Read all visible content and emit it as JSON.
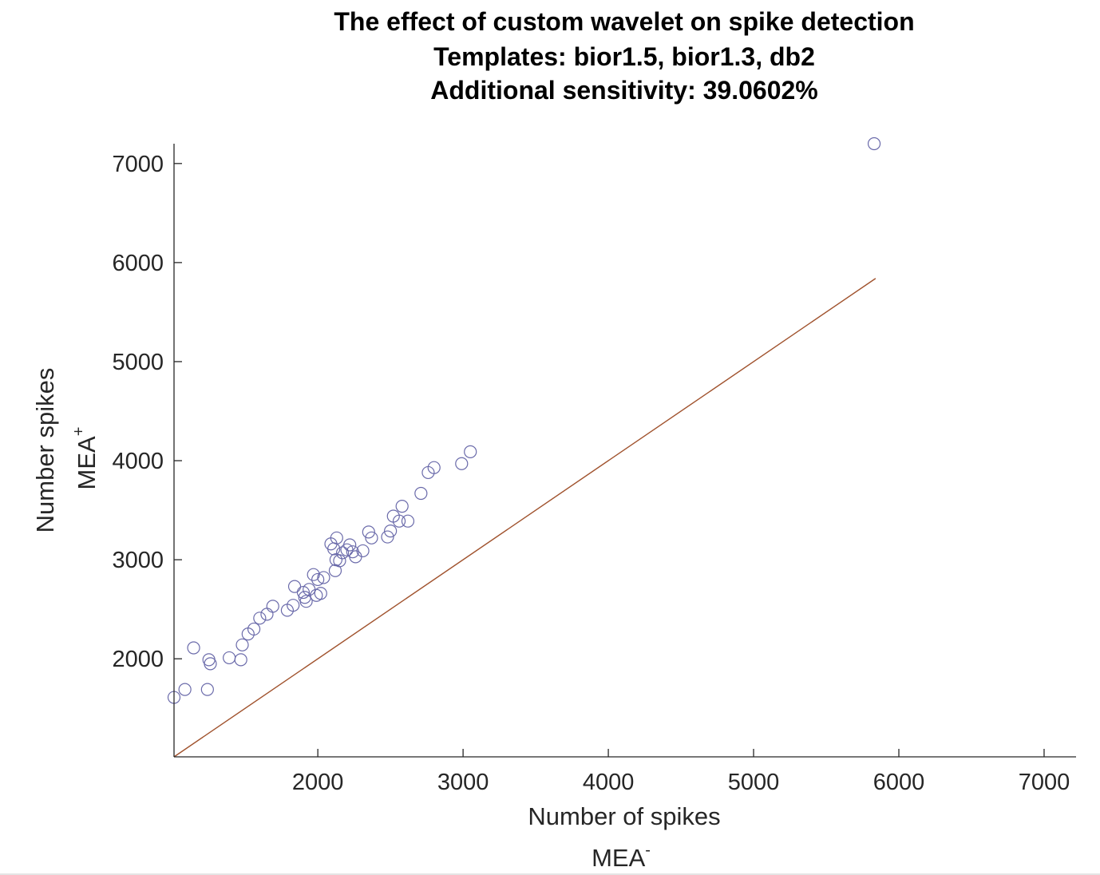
{
  "chart_data": {
    "type": "scatter",
    "title": [
      "The effect of custom wavelet on spike detection",
      "Templates: bior1.5, bior1.3, db2",
      "Additional sensitivity: 39.0602%"
    ],
    "xlabel": "Number of spikes",
    "xlabel_sub": "MEA",
    "xlabel_sup": "-",
    "ylabel": "Number spikes",
    "ylabel_sub": "MEA",
    "ylabel_sup": "+",
    "xlim": [
      1010,
      7220
    ],
    "ylim": [
      1010,
      7200
    ],
    "x_ticks": [
      2000,
      3000,
      4000,
      5000,
      6000,
      7000
    ],
    "y_ticks": [
      2000,
      3000,
      4000,
      5000,
      6000,
      7000
    ],
    "grid": false,
    "marker_color": "#6a6aaa",
    "line_color": "#a0522d",
    "reference_line": {
      "x": [
        1010,
        5840
      ],
      "y": [
        1010,
        5840
      ]
    },
    "series": [
      {
        "points": [
          [
            1010,
            1610
          ],
          [
            1085,
            1690
          ],
          [
            1145,
            2110
          ],
          [
            1240,
            1690
          ],
          [
            1250,
            1990
          ],
          [
            1260,
            1950
          ],
          [
            1390,
            2010
          ],
          [
            1470,
            1990
          ],
          [
            1480,
            2140
          ],
          [
            1520,
            2250
          ],
          [
            1560,
            2300
          ],
          [
            1600,
            2410
          ],
          [
            1650,
            2450
          ],
          [
            1690,
            2530
          ],
          [
            1790,
            2490
          ],
          [
            1830,
            2540
          ],
          [
            1840,
            2730
          ],
          [
            1900,
            2670
          ],
          [
            1910,
            2620
          ],
          [
            1920,
            2580
          ],
          [
            1940,
            2700
          ],
          [
            1970,
            2850
          ],
          [
            1990,
            2640
          ],
          [
            2000,
            2800
          ],
          [
            2020,
            2660
          ],
          [
            2040,
            2820
          ],
          [
            2090,
            3160
          ],
          [
            2110,
            3110
          ],
          [
            2120,
            2890
          ],
          [
            2125,
            3000
          ],
          [
            2130,
            3220
          ],
          [
            2150,
            2990
          ],
          [
            2170,
            3070
          ],
          [
            2200,
            3100
          ],
          [
            2220,
            3150
          ],
          [
            2240,
            3080
          ],
          [
            2260,
            3030
          ],
          [
            2310,
            3090
          ],
          [
            2350,
            3280
          ],
          [
            2370,
            3220
          ],
          [
            2480,
            3230
          ],
          [
            2500,
            3290
          ],
          [
            2520,
            3440
          ],
          [
            2560,
            3390
          ],
          [
            2580,
            3540
          ],
          [
            2620,
            3390
          ],
          [
            2710,
            3670
          ],
          [
            2760,
            3880
          ],
          [
            2800,
            3930
          ],
          [
            2990,
            3970
          ],
          [
            3050,
            4090
          ],
          [
            5830,
            7200
          ]
        ]
      }
    ]
  }
}
